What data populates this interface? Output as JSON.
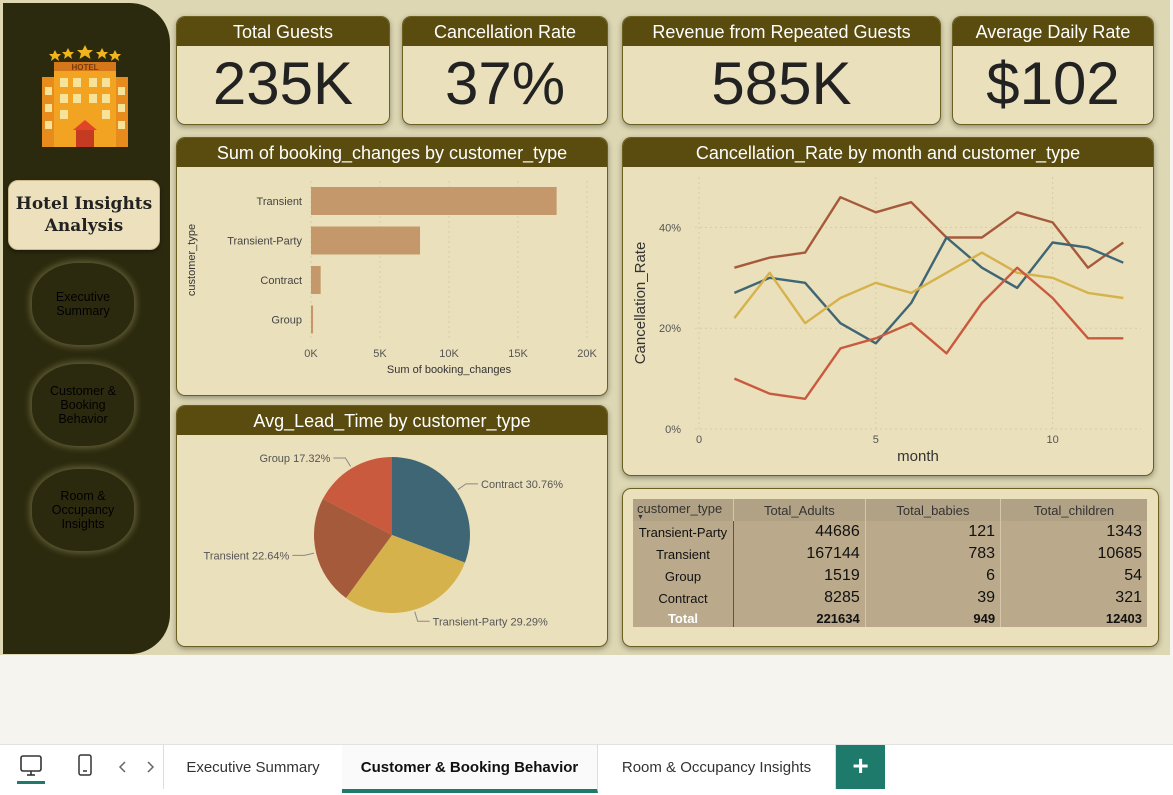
{
  "sidebar": {
    "title": "Hotel Insights\nAnalysis",
    "logo_text": "HOTEL",
    "nav": [
      {
        "label": "Executive\nSummary",
        "active": false
      },
      {
        "label": "Customer &\nBooking\nBehavior",
        "active": true
      },
      {
        "label": "Room &\nOccupancy\nInsights",
        "active": false
      }
    ]
  },
  "kpis": [
    {
      "label": "Total Guests",
      "value": "235K"
    },
    {
      "label": "Cancellation Rate",
      "value": "37%"
    },
    {
      "label": "Revenue from Repeated Guests",
      "value": "585K"
    },
    {
      "label": "Average Daily Rate",
      "value": "$102"
    }
  ],
  "colors": {
    "header": "#5a4c0f",
    "card": "#ebe0bc",
    "bar": "#c4986a",
    "accent": "#1e7a6b"
  },
  "chart_data": [
    {
      "type": "bar",
      "title": "Sum of booking_changes by customer_type",
      "xlabel": "Sum of booking_changes",
      "ylabel": "customer_type",
      "categories": [
        "Transient",
        "Transient-Party",
        "Contract",
        "Group"
      ],
      "values": [
        17800,
        7900,
        700,
        150
      ],
      "xlim": [
        0,
        20000
      ],
      "xticks": [
        "0K",
        "5K",
        "10K",
        "15K",
        "20K"
      ],
      "grid": true
    },
    {
      "type": "line",
      "title": "Cancellation_Rate by month and customer_type",
      "xlabel": "month",
      "ylabel": "Cancellation_Rate",
      "xlim": [
        0,
        12.5
      ],
      "ylim": [
        0,
        0.5
      ],
      "xticks": [
        "0",
        "5",
        "10"
      ],
      "yticks": [
        "0%",
        "20%",
        "40%"
      ],
      "x": [
        1,
        2,
        3,
        4,
        5,
        6,
        7,
        8,
        9,
        10,
        11,
        12
      ],
      "series": [
        {
          "color": "#a55a3b",
          "values": [
            0.32,
            0.34,
            0.35,
            0.46,
            0.43,
            0.45,
            0.38,
            0.38,
            0.43,
            0.41,
            0.32,
            0.37
          ]
        },
        {
          "color": "#3f6674",
          "values": [
            0.27,
            0.3,
            0.29,
            0.21,
            0.17,
            0.25,
            0.38,
            0.32,
            0.28,
            0.37,
            0.36,
            0.33
          ]
        },
        {
          "color": "#d6b24c",
          "values": [
            0.22,
            0.31,
            0.21,
            0.26,
            0.29,
            0.27,
            0.31,
            0.35,
            0.31,
            0.3,
            0.27,
            0.26
          ]
        },
        {
          "color": "#c95a3e",
          "values": [
            0.1,
            0.07,
            0.06,
            0.16,
            0.18,
            0.21,
            0.15,
            0.25,
            0.32,
            0.26,
            0.18,
            0.18
          ]
        }
      ],
      "grid": true
    },
    {
      "type": "pie",
      "title": "Avg_Lead_Time by customer_type",
      "slices": [
        {
          "label": "Contract 30.76%",
          "value": 30.76,
          "color": "#3f6674"
        },
        {
          "label": "Transient-Party 29.29%",
          "value": 29.29,
          "color": "#d6b24c"
        },
        {
          "label": "Transient 22.64%",
          "value": 22.64,
          "color": "#a55a3b"
        },
        {
          "label": "Group 17.32%",
          "value": 17.32,
          "color": "#c95a3e"
        }
      ]
    },
    {
      "type": "table",
      "columns": [
        "customer_type",
        "Total_Adults",
        "Total_babies",
        "Total_children"
      ],
      "rows": [
        [
          "Transient-Party",
          "44686",
          "121",
          "1343"
        ],
        [
          "Transient",
          "167144",
          "783",
          "10685"
        ],
        [
          "Group",
          "1519",
          "6",
          "54"
        ],
        [
          "Contract",
          "8285",
          "39",
          "321"
        ]
      ],
      "total": [
        "Total",
        "221634",
        "949",
        "12403"
      ]
    }
  ],
  "tabs": [
    {
      "label": "Executive Summary",
      "active": false
    },
    {
      "label": "Customer & Booking Behavior",
      "active": true
    },
    {
      "label": "Room & Occupancy Insights",
      "active": false
    }
  ],
  "add_tab_label": "+"
}
